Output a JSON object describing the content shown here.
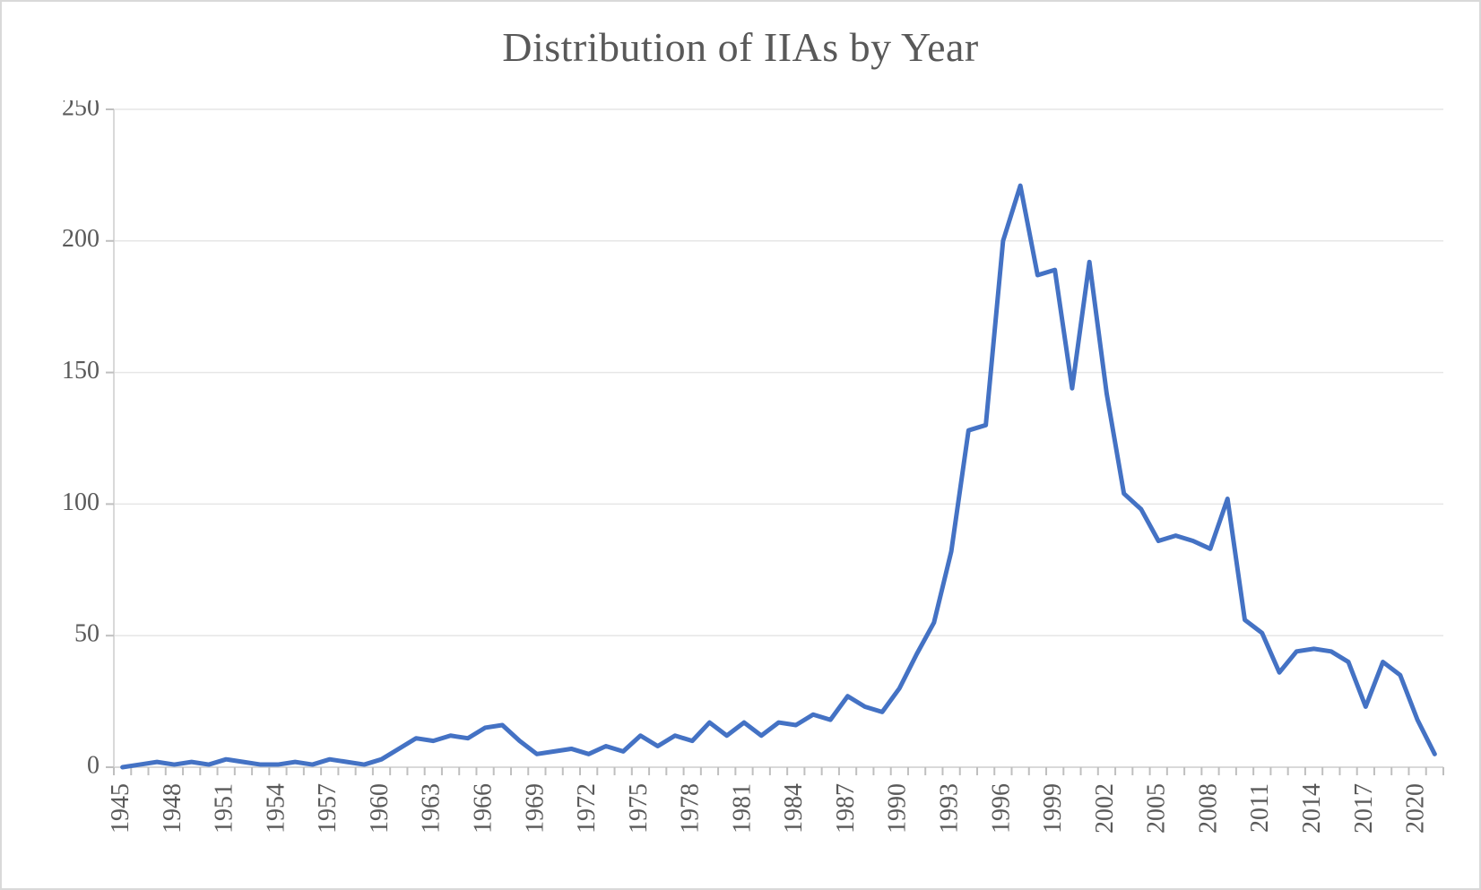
{
  "chart": {
    "type": "line",
    "title": "Distribution of IIAs by Year",
    "title_fontsize": 46,
    "title_color": "#595959",
    "background_color": "#ffffff",
    "frame_border_color": "#d9d9d9",
    "plot_border_left_bottom_color": "#d9d9d9",
    "grid_color": "#e6e6e6",
    "grid_width": 1.5,
    "axis_tick_color": "#bfbfbf",
    "axis_label_color": "#595959",
    "axis_label_fontsize": 28,
    "series_color": "#4472c4",
    "series_width": 5,
    "ylim": [
      0,
      250
    ],
    "ytick_step": 50,
    "yticks": [
      0,
      50,
      100,
      150,
      200,
      250
    ],
    "xlim": [
      1945,
      2021
    ],
    "xtick_step": 3,
    "xticks": [
      1945,
      1948,
      1951,
      1954,
      1957,
      1960,
      1963,
      1966,
      1969,
      1972,
      1975,
      1978,
      1981,
      1984,
      1987,
      1990,
      1993,
      1996,
      1999,
      2002,
      2005,
      2008,
      2011,
      2014,
      2017,
      2020
    ],
    "xtick_rotation": -90,
    "years": [
      1945,
      1946,
      1947,
      1948,
      1949,
      1950,
      1951,
      1952,
      1953,
      1954,
      1955,
      1956,
      1957,
      1958,
      1959,
      1960,
      1961,
      1962,
      1963,
      1964,
      1965,
      1966,
      1967,
      1968,
      1969,
      1970,
      1971,
      1972,
      1973,
      1974,
      1975,
      1976,
      1977,
      1978,
      1979,
      1980,
      1981,
      1982,
      1983,
      1984,
      1985,
      1986,
      1987,
      1988,
      1989,
      1990,
      1991,
      1992,
      1993,
      1994,
      1995,
      1996,
      1997,
      1998,
      1999,
      2000,
      2001,
      2002,
      2003,
      2004,
      2005,
      2006,
      2007,
      2008,
      2009,
      2010,
      2011,
      2012,
      2013,
      2014,
      2015,
      2016,
      2017,
      2018,
      2019,
      2020,
      2021
    ],
    "values": [
      0,
      1,
      2,
      1,
      2,
      1,
      3,
      2,
      1,
      1,
      2,
      1,
      3,
      2,
      1,
      3,
      7,
      11,
      10,
      12,
      11,
      15,
      16,
      10,
      5,
      6,
      7,
      5,
      8,
      6,
      12,
      8,
      12,
      10,
      17,
      12,
      17,
      12,
      17,
      16,
      20,
      18,
      27,
      23,
      21,
      30,
      43,
      55,
      82,
      128,
      130,
      200,
      221,
      187,
      189,
      144,
      192,
      142,
      104,
      98,
      86,
      88,
      86,
      83,
      102,
      56,
      51,
      36,
      44,
      45,
      44,
      40,
      23,
      40,
      35,
      18,
      5
    ]
  }
}
